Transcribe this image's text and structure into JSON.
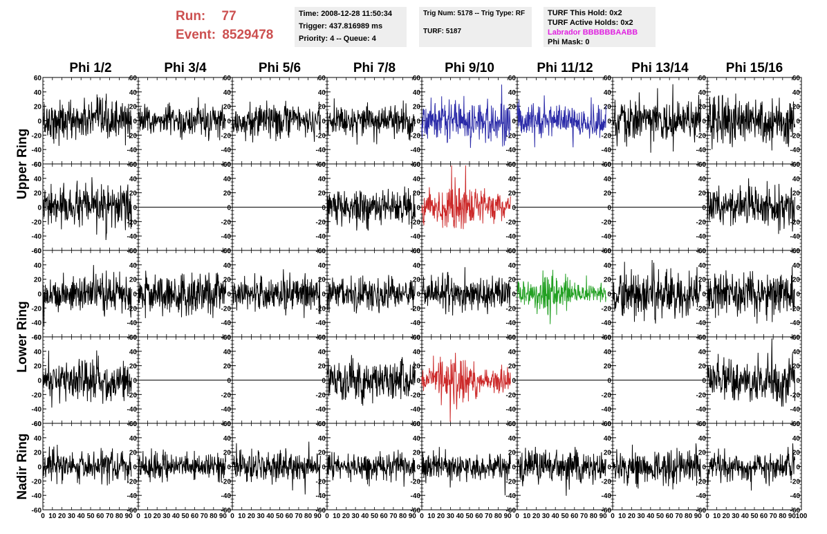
{
  "run": {
    "label": "Run:",
    "value": "77"
  },
  "event": {
    "label": "Event:",
    "value": "8529478"
  },
  "info": {
    "time": "Time: 2008-12-28 11:50:34",
    "trigger": "Trigger: 437.816989 ms",
    "priority": "Priority: 4 -- Queue: 4",
    "trig_num": "Trig Num: 5178 -- Trig Type: RF",
    "turf": "TURF: 5187",
    "turf_hold": "TURF This Hold: 0x2",
    "turf_active": "TURF Active Holds: 0x2",
    "labrador": "Labrador BBBBBBAABB",
    "phi_mask": "Phi Mask: 0"
  },
  "colors": {
    "run_text": "#cc5050",
    "labrador": "#e020e0",
    "black": "#000000",
    "blue": "#2a2aa8",
    "red": "#cc2a2a",
    "green": "#22a022"
  },
  "chart_data": {
    "type": "line",
    "columns": [
      "Phi 1/2",
      "Phi 3/4",
      "Phi 5/6",
      "Phi 7/8",
      "Phi 9/10",
      "Phi 11/12",
      "Phi 13/14",
      "Phi 15/16"
    ],
    "ring_labels": [
      "Upper Ring",
      "Lower Ring",
      "Nadir Ring"
    ],
    "rows": 5,
    "ylim": [
      -60,
      60
    ],
    "xlim": [
      0,
      100
    ],
    "yticks": [
      -60,
      -40,
      -20,
      0,
      20,
      40,
      60
    ],
    "xticks": [
      0,
      10,
      20,
      30,
      40,
      50,
      60,
      70,
      80,
      90,
      100
    ],
    "xtick_labels_per_panel": [
      "0",
      "10",
      "20",
      "30",
      "40",
      "50",
      "60",
      "70",
      "80",
      "90",
      "100"
    ],
    "samples": 260,
    "x_end": 93,
    "panels": [
      [
        "noise",
        "noise",
        "noise",
        "noise",
        "noise-blue",
        "noise-blue",
        "noise",
        "noise"
      ],
      [
        "noise",
        "flat",
        "flat",
        "noise",
        "pulse-red",
        "flat",
        "flat",
        "noise"
      ],
      [
        "noise",
        "noise",
        "noise",
        "noise",
        "noise",
        "pulse-green",
        "noise",
        "noise"
      ],
      [
        "noise",
        "flat",
        "flat",
        "noise",
        "pulse-red",
        "flat",
        "flat",
        "noise"
      ],
      [
        "noise",
        "noise",
        "noise",
        "noise",
        "noise",
        "noise",
        "noise",
        "noise"
      ]
    ],
    "amplitude_rms": [
      [
        14,
        11,
        12,
        11,
        15,
        11,
        15,
        16
      ],
      [
        14,
        0,
        0,
        13,
        15,
        0,
        0,
        15
      ],
      [
        13,
        14,
        13,
        12,
        12,
        11,
        16,
        14
      ],
      [
        14,
        0,
        0,
        14,
        13,
        0,
        0,
        16
      ],
      [
        11,
        9,
        11,
        10,
        10,
        12,
        12,
        11
      ]
    ]
  }
}
